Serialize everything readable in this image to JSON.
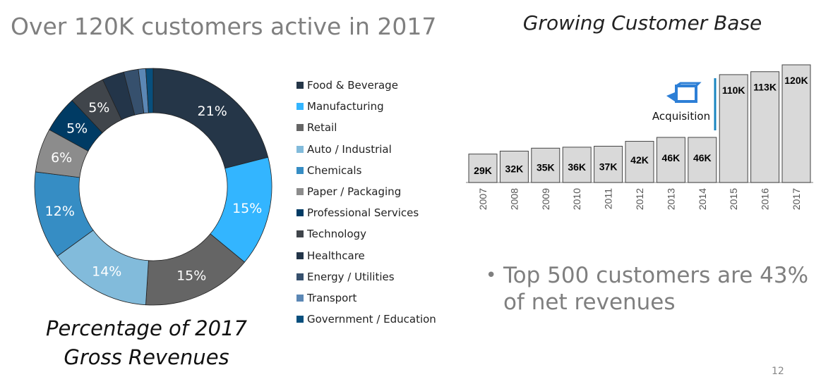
{
  "slide": {
    "title": "Over 120K customers active in 2017",
    "caption_line1": "Percentage of 2017",
    "caption_line2": "Gross Revenues",
    "bullet": "Top 500 customers are 43% of net revenues",
    "page_number": "12"
  },
  "chart_data": [
    {
      "type": "pie",
      "title": "Percentage of 2017 Gross Revenues",
      "legend_placement": "right",
      "categories": [
        "Food & Beverage",
        "Manufacturing",
        "Retail",
        "Auto / Industrial",
        "Chemicals",
        "Paper / Packaging",
        "Professional Services",
        "Technology",
        "Healthcare",
        "Energy / Utilities",
        "Transport",
        "Government / Education"
      ],
      "values": [
        21,
        15,
        15,
        14,
        12,
        6,
        5,
        5,
        3,
        2,
        1,
        1
      ],
      "labels": [
        "21%",
        "15%",
        "15%",
        "14%",
        "12%",
        "6%",
        "5%",
        "5%",
        "",
        "",
        "",
        ""
      ],
      "colors": [
        "#253648",
        "#33b5ff",
        "#656565",
        "#82bbdb",
        "#368dc4",
        "#8c8c8c",
        "#003b64",
        "#40454b",
        "#233549",
        "#36506d",
        "#5b87b5",
        "#084f7d"
      ]
    },
    {
      "type": "bar",
      "title": "Growing Customer Base",
      "categories": [
        "2007",
        "2008",
        "2009",
        "2010",
        "2011",
        "2012",
        "2013",
        "2014",
        "2015",
        "2016",
        "2017"
      ],
      "values": [
        29,
        32,
        35,
        36,
        37,
        42,
        46,
        46,
        110,
        113,
        120
      ],
      "labels": [
        "29K",
        "32K",
        "35K",
        "36K",
        "37K",
        "42K",
        "46K",
        "46K",
        "110K",
        "113K",
        "120K"
      ],
      "annotation": "Acquisition",
      "annotation_color": "#1a86c0",
      "bar_color": "#d9d9d9",
      "ylim": [
        0,
        120
      ]
    }
  ]
}
